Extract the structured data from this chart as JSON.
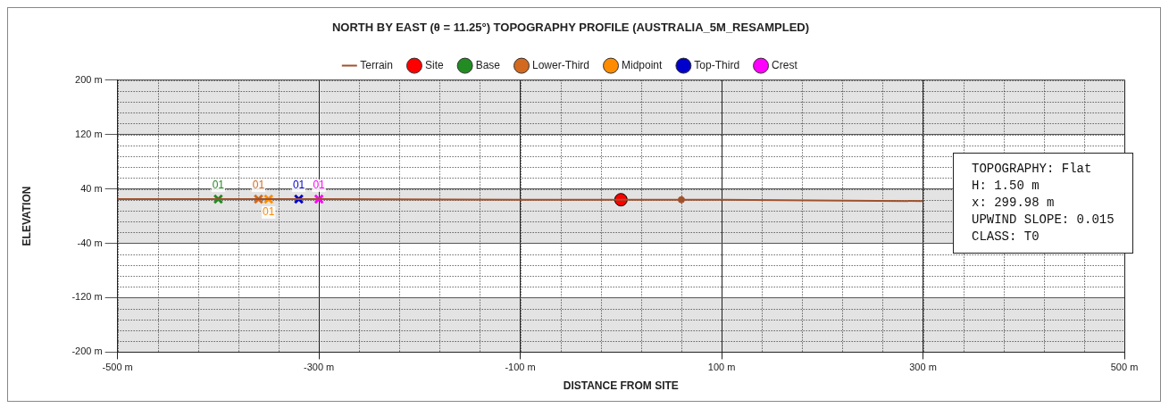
{
  "chart_data": {
    "type": "line",
    "title": "NORTH BY EAST (θ = 11.25°) TOPOGRAPHY PROFILE (AUSTRALIA_5M_RESAMPLED)",
    "xlabel": "DISTANCE FROM SITE",
    "ylabel": "ELEVATION",
    "xlim": [
      -500,
      500
    ],
    "xticks": [
      {
        "value": -500,
        "label": "-500 m"
      },
      {
        "value": -300,
        "label": "-300 m"
      },
      {
        "value": -100,
        "label": "-100 m"
      },
      {
        "value": 100,
        "label": "100 m"
      },
      {
        "value": 300,
        "label": "300 m"
      },
      {
        "value": 500,
        "label": "500 m"
      }
    ],
    "ylim": [
      -200,
      200
    ],
    "yticks": [
      {
        "value": -200,
        "label": "-200 m"
      },
      {
        "value": -120,
        "label": "-120 m"
      },
      {
        "value": -40,
        "label": "-40 m"
      },
      {
        "value": 40,
        "label": "40 m"
      },
      {
        "value": 120,
        "label": "120 m"
      },
      {
        "value": 200,
        "label": "200 m"
      }
    ],
    "grid": true,
    "legend": "top",
    "series": [
      {
        "name": "Terrain",
        "color": "#a0522d",
        "marker": "none",
        "line_style": "solid",
        "x": [
          -500,
          -300,
          -100,
          0,
          100,
          300
        ],
        "values": [
          25,
          25,
          24,
          24,
          24,
          22
        ]
      },
      {
        "type": "scatter",
        "color": "#a0522d",
        "marker": "circle",
        "x": [
          60
        ],
        "values": [
          24
        ]
      },
      {
        "name": "Site",
        "type": "scatter",
        "color": "#ff0000",
        "marker": "circle",
        "x": [
          0
        ],
        "values": [
          24
        ]
      },
      {
        "name": "Base",
        "type": "scatter",
        "color": "#228b22",
        "marker": "cross",
        "x": [
          -400
        ],
        "values": [
          25
        ]
      },
      {
        "name": "Lower-Third",
        "type": "scatter",
        "color": "#d2691e",
        "marker": "cross",
        "x": [
          -360
        ],
        "values": [
          25
        ]
      },
      {
        "name": "Midpoint",
        "type": "scatter",
        "color": "#ff8c00",
        "marker": "cross",
        "x": [
          -350
        ],
        "values": [
          25
        ]
      },
      {
        "name": "Top-Third",
        "type": "scatter",
        "color": "#0000cd",
        "marker": "cross",
        "x": [
          -320
        ],
        "values": [
          25
        ]
      },
      {
        "name": "Crest",
        "type": "scatter",
        "color": "#ff00ff",
        "marker": "cross",
        "x": [
          -300
        ],
        "values": [
          25
        ]
      }
    ],
    "annotations": [
      {
        "text": "01",
        "x": -400,
        "y": 25
      },
      {
        "text": "01",
        "x": -360,
        "y": 25
      },
      {
        "text": "01",
        "x": -350,
        "y": 25
      },
      {
        "text": "01",
        "x": -320,
        "y": 25
      },
      {
        "text": "01",
        "x": -300,
        "y": 25
      },
      "TOPOGRAPHY: Flat\nH: 1.50 m\nx: 299.98 m\nUPWIND SLOPE: 0.015\nCLASS: T0"
    ]
  }
}
